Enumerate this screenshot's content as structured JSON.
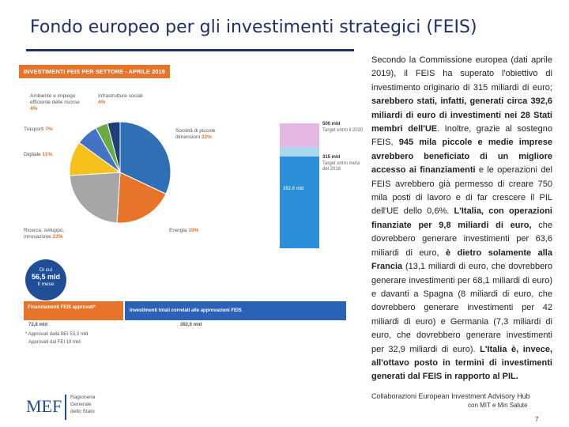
{
  "slide": {
    "title": "Fondo europeo per gli investimenti strategici (FEIS)",
    "page_number": "7",
    "footer_collab": "Collaborazioni European Investment Advisory Hub",
    "footer_collab2": "con MIT e Min Salute"
  },
  "logo": {
    "mark": "MEF",
    "name_line1": "Ragioneria",
    "name_line2": "Generale",
    "name_line3": "dello Stato"
  },
  "infographic": {
    "banner": "INVESTIMENTI FEIS PER SETTORE - APRILE 2019",
    "pie_labels": {
      "infrastrutture": {
        "label": "Infrastrutture sociali",
        "value": "4%"
      },
      "ambiente": {
        "label": "Ambiente e impiego efficiente delle risorse",
        "value": "4%"
      },
      "trasporti": {
        "label": "Trasporti",
        "value": "7%"
      },
      "digitale": {
        "label": "Digitale",
        "value": "11%"
      },
      "ricerca": {
        "label": "Ricerca, sviluppo, innovazione",
        "value": "23%"
      },
      "energia": {
        "label": "Energia",
        "value": "19%"
      },
      "pmi": {
        "label": "Società di piccole dimensioni",
        "value": "32%"
      }
    },
    "pie_colors": [
      "#2f6fb5",
      "#e8742a",
      "#a6a6a6",
      "#f5c11a",
      "#4472c4",
      "#6aab46",
      "#1f3f7a"
    ],
    "bar": {
      "target_top": "500 mld",
      "target_top_note": "Target entro il 2020",
      "target_mid": "315 mld",
      "target_mid_note": "Target entro metà del 2018",
      "current": "392,6 mld",
      "colors": {
        "top": "#e4b8e0",
        "mid": "#a9d7f0",
        "current": "#2a8fd8"
      }
    },
    "circle": {
      "line1": "Di cui",
      "value": "56,5 mld",
      "line3": "Il mese"
    },
    "strip_left": "Finanziamenti FEIS approvati*",
    "strip_right": "Investimenti totali correlati alle approvazioni FEIS",
    "strip_left_value": "72,8 mld",
    "strip_right_value": "392,6 mld",
    "note1": "* Approvati dalla BEI 53,3 mld",
    "note2": "Approvati dal FEI 19 mld"
  },
  "body": {
    "p1": "Secondo la Commissione europea (dati aprile 2019), il FEIS ha superato l'obiettivo di investimento originario di 315 miliardi di euro;",
    "p1b": "sarebbero stati, infatti, generati circa 392,6 miliardi di euro di investimenti nei 28 Stati membri dell'UE",
    "p2": ". Inoltre, grazie al sostegno FEIS,",
    "p2b": "945 mila piccole e medie imprese avrebbero beneficiato di un migliore accesso ai finanziamenti",
    "p3": "e le operazioni del FEIS avrebbero già permesso di creare 750 mila posti di lavoro e di far crescere il PIL dell'UE dello 0,6%.",
    "p3b": "L'Italia, con operazioni finanziate per 9,8 miliardi di euro,",
    "p4": "che dovrebbero generare investimenti per 63,6 miliardi di euro,",
    "p4b": "è dietro solamente alla Francia",
    "p5": "(13,1 miliardi di euro, che dovrebbero generare investimenti per 68,1 miliardi di euro) e davanti a Spagna (8 miliardi di euro, che dovrebbero generare investimenti per 42 miliardi di euro) e Germania (7,3 miliardi di euro, che dovrebbero generare investimenti per 32,9 miliardi di euro).",
    "p5b": "L'Italia è, invece, all'ottavo posto in termini di investimenti generati dal FEIS in rapporto al PIL."
  },
  "chart_data": {
    "type": "pie",
    "title": "INVESTIMENTI FEIS PER SETTORE - APRILE 2019",
    "categories": [
      "Società di piccole dimensioni",
      "Energia",
      "Ricerca, sviluppo, innovazione",
      "Digitale",
      "Trasporti",
      "Ambiente e impiego efficiente delle risorse",
      "Infrastrutture sociali"
    ],
    "values": [
      32,
      19,
      23,
      11,
      7,
      4,
      4
    ],
    "unit": "%"
  }
}
